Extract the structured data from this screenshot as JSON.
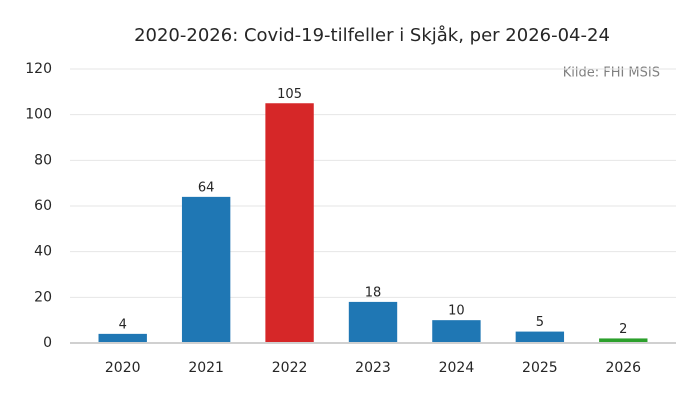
{
  "chart_data": {
    "type": "bar",
    "title": "2020-2026: Covid-19-tilfeller i Skjåk, per 2026-04-24",
    "annotation": "Kilde: FHI MSIS",
    "categories": [
      "2020",
      "2021",
      "2022",
      "2023",
      "2024",
      "2025",
      "2026"
    ],
    "values": [
      4,
      64,
      105,
      18,
      10,
      5,
      2
    ],
    "colors": [
      "#1f77b4",
      "#1f77b4",
      "#d62728",
      "#1f77b4",
      "#1f77b4",
      "#1f77b4",
      "#2ca02c"
    ],
    "ylim": [
      0,
      120
    ],
    "yticks": [
      0,
      20,
      40,
      60,
      80,
      100,
      120
    ],
    "grid": true
  }
}
